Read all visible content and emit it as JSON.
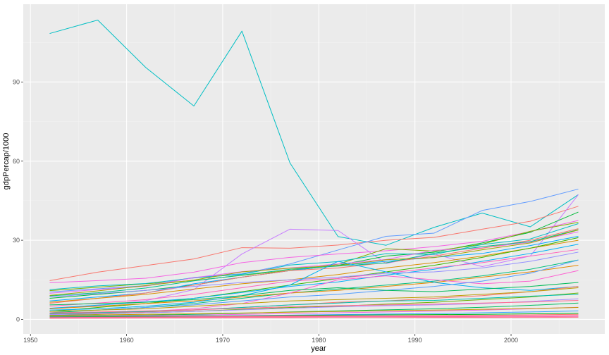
{
  "chart_data": {
    "type": "line",
    "title": "",
    "xlabel": "year",
    "ylabel": "gdpPercap/1000",
    "xlim": [
      1949.25,
      2009.75
    ],
    "ylim": [
      -5.5,
      119.5
    ],
    "x_ticks": [
      1950,
      1960,
      1970,
      1980,
      1990,
      2000
    ],
    "x_tick_labels": [
      "1950",
      "1960",
      "1970",
      "1980",
      "1990",
      "2000"
    ],
    "y_ticks": [
      0,
      30,
      60,
      90
    ],
    "y_tick_labels": [
      "0",
      "30",
      "60",
      "90"
    ],
    "grid": true,
    "legend": "none",
    "panel_background": "#ebebeb",
    "x": [
      1952,
      1957,
      1962,
      1967,
      1972,
      1977,
      1982,
      1987,
      1992,
      1997,
      2002,
      2007
    ],
    "series": [
      {
        "color": "#00bfc4",
        "values": [
          108.4,
          113.5,
          95.5,
          80.9,
          109.3,
          59.3,
          31.4,
          28.1,
          34.9,
          40.3,
          35.1,
          47.3
        ]
      },
      {
        "color": "#f8766d",
        "values": [
          14.7,
          17.9,
          20.4,
          22.9,
          27.2,
          27.0,
          28.2,
          30.0,
          31.1,
          34.2,
          37.2,
          42.9
        ]
      },
      {
        "color": "#619cff",
        "values": [
          10.4,
          11.6,
          12.8,
          15.9,
          17.3,
          21.0,
          26.3,
          31.5,
          32.7,
          41.3,
          44.7,
          49.4
        ]
      },
      {
        "color": "#c77cff",
        "values": [
          4.0,
          5.2,
          7.1,
          11.3,
          24.8,
          34.2,
          33.7,
          21.2,
          24.8,
          20.0,
          24.0,
          47.3
        ]
      },
      {
        "color": "#00ba38",
        "values": [
          8.0,
          9.5,
          11.0,
          13.0,
          16.0,
          18.5,
          20.5,
          24.0,
          25.5,
          29.0,
          33.0,
          40.7
        ]
      },
      {
        "color": "#f564e3",
        "values": [
          13.9,
          14.7,
          15.6,
          17.9,
          21.5,
          23.5,
          24.8,
          26.0,
          27.6,
          29.6,
          33.3,
          37.5
        ]
      },
      {
        "color": "#7cae00",
        "values": [
          10.9,
          12.2,
          13.5,
          14.7,
          16.7,
          18.6,
          20.9,
          26.8,
          25.9,
          28.5,
          33.4,
          36.8
        ]
      },
      {
        "color": "#00bfc4",
        "values": [
          11.3,
          12.7,
          13.6,
          15.7,
          17.1,
          20.6,
          21.9,
          24.9,
          24.6,
          28.4,
          30.5,
          36.3
        ]
      },
      {
        "color": "#e76bf3",
        "values": [
          9.9,
          11.3,
          12.6,
          15.8,
          18.1,
          19.5,
          21.0,
          22.7,
          26.2,
          27.1,
          29.3,
          33.2
        ]
      },
      {
        "color": "#00a9ff",
        "values": [
          7.0,
          8.5,
          10.0,
          13.5,
          16.0,
          18.5,
          20.5,
          22.0,
          23.5,
          25.0,
          28.0,
          31.5
        ]
      },
      {
        "color": "#f8766d",
        "values": [
          6.1,
          8.0,
          10.0,
          13.0,
          16.0,
          18.5,
          19.5,
          21.5,
          24.0,
          27.0,
          30.0,
          34.4
        ]
      },
      {
        "color": "#00c08b",
        "values": [
          8.9,
          10.1,
          11.9,
          14.6,
          16.8,
          19.0,
          20.2,
          21.4,
          25.1,
          27.6,
          29.5,
          34.0
        ]
      },
      {
        "color": "#a3a500",
        "values": [
          9.1,
          10.8,
          12.8,
          14.9,
          18.0,
          19.4,
          20.4,
          22.6,
          23.4,
          26.4,
          29.0,
          33.9
        ]
      },
      {
        "color": "#d89000",
        "values": [
          6.5,
          8.0,
          9.5,
          11.5,
          13.5,
          15.0,
          17.0,
          19.5,
          21.5,
          24.0,
          27.0,
          30.0
        ]
      },
      {
        "color": "#39b600",
        "values": [
          3.0,
          4.5,
          6.0,
          8.0,
          10.5,
          13.0,
          15.5,
          18.0,
          20.5,
          23.5,
          27.0,
          31.0
        ]
      },
      {
        "color": "#00b0f6",
        "values": [
          4.2,
          5.4,
          6.6,
          8.0,
          10.2,
          12.5,
          14.2,
          16.8,
          19.0,
          22.0,
          25.0,
          28.5
        ]
      },
      {
        "color": "#ff62bc",
        "values": [
          5.0,
          6.2,
          7.5,
          9.5,
          12.0,
          14.5,
          15.5,
          17.5,
          19.5,
          21.5,
          24.0,
          26.5
        ]
      },
      {
        "color": "#9590ff",
        "values": [
          8.5,
          9.8,
          11.0,
          12.5,
          14.0,
          15.0,
          16.0,
          17.5,
          18.0,
          19.5,
          22.0,
          25.5
        ]
      },
      {
        "color": "#00bf7d",
        "values": [
          2.5,
          3.5,
          4.5,
          6.0,
          8.0,
          10.0,
          11.5,
          13.0,
          14.5,
          16.5,
          19.0,
          22.5
        ]
      },
      {
        "color": "#e58700",
        "values": [
          4.0,
          5.0,
          6.0,
          7.0,
          8.5,
          10.0,
          11.0,
          12.5,
          14.0,
          16.0,
          18.0,
          20.5
        ]
      },
      {
        "color": "#00b4ef",
        "values": [
          3.5,
          4.0,
          5.0,
          6.5,
          9.0,
          13.0,
          22.0,
          18.0,
          14.0,
          12.0,
          11.0,
          12.5
        ]
      },
      {
        "color": "#fd61d1",
        "values": [
          2.0,
          2.5,
          3.0,
          4.0,
          6.0,
          10.0,
          15.0,
          16.5,
          15.0,
          13.5,
          14.5,
          18.5
        ]
      },
      {
        "color": "#529eff",
        "values": [
          3.0,
          3.5,
          4.5,
          5.5,
          7.0,
          8.5,
          9.5,
          11.0,
          12.5,
          14.5,
          17.5,
          22.5
        ]
      },
      {
        "color": "#00bc59",
        "values": [
          5.5,
          6.0,
          6.5,
          7.5,
          9.0,
          11.0,
          12.0,
          11.0,
          10.5,
          11.5,
          12.5,
          14.0
        ]
      },
      {
        "color": "#f8766d",
        "values": [
          2.0,
          2.4,
          2.8,
          3.5,
          4.5,
          5.5,
          6.5,
          7.0,
          8.0,
          9.0,
          10.5,
          12.5
        ]
      },
      {
        "color": "#bb9d00",
        "values": [
          3.0,
          3.5,
          4.0,
          5.0,
          6.0,
          7.0,
          7.5,
          8.0,
          8.5,
          9.5,
          10.5,
          12.0
        ]
      },
      {
        "color": "#6bb100",
        "values": [
          1.5,
          2.0,
          2.5,
          3.0,
          3.8,
          4.5,
          5.0,
          5.8,
          6.5,
          7.5,
          8.5,
          10.0
        ]
      },
      {
        "color": "#00c0af",
        "values": [
          2.2,
          2.6,
          3.0,
          3.6,
          4.5,
          5.5,
          6.2,
          7.0,
          7.2,
          8.0,
          8.8,
          9.5
        ]
      },
      {
        "color": "#a58aff",
        "values": [
          1.8,
          2.1,
          2.5,
          3.0,
          3.6,
          4.2,
          4.8,
          5.2,
          5.5,
          6.0,
          6.8,
          7.8
        ]
      },
      {
        "color": "#ff6c91",
        "values": [
          2.5,
          2.8,
          3.2,
          3.6,
          4.2,
          4.8,
          5.2,
          5.5,
          5.8,
          6.2,
          6.6,
          7.2
        ]
      },
      {
        "color": "#00bd5f",
        "values": [
          1.2,
          1.4,
          1.6,
          1.9,
          2.3,
          2.8,
          3.2,
          3.6,
          4.0,
          4.6,
          5.3,
          6.2
        ]
      },
      {
        "color": "#ef67eb",
        "values": [
          1.0,
          1.2,
          1.4,
          1.6,
          1.9,
          2.2,
          2.5,
          2.8,
          3.1,
          3.5,
          4.0,
          4.6
        ]
      },
      {
        "color": "#c49a00",
        "values": [
          1.5,
          1.7,
          1.9,
          2.1,
          2.4,
          2.7,
          3.0,
          3.3,
          3.5,
          3.8,
          4.1,
          4.5
        ]
      },
      {
        "color": "#35a2ff",
        "values": [
          0.8,
          0.9,
          1.0,
          1.2,
          1.4,
          1.6,
          1.8,
          2.0,
          2.2,
          2.5,
          2.8,
          3.2
        ]
      },
      {
        "color": "#f8766d",
        "values": [
          0.6,
          0.7,
          0.8,
          0.9,
          1.0,
          1.1,
          1.2,
          1.3,
          1.4,
          1.5,
          1.7,
          1.9
        ]
      },
      {
        "color": "#00b81f",
        "values": [
          0.9,
          1.0,
          1.1,
          1.2,
          1.3,
          1.5,
          1.6,
          1.7,
          1.8,
          1.9,
          2.1,
          2.3
        ]
      },
      {
        "color": "#ff65ae",
        "values": [
          0.5,
          0.6,
          0.6,
          0.7,
          0.8,
          0.9,
          1.0,
          1.0,
          0.9,
          0.9,
          1.0,
          1.1
        ]
      },
      {
        "color": "#ff66a8",
        "values": [
          0.7,
          0.8,
          0.9,
          1.0,
          1.2,
          1.3,
          1.3,
          1.2,
          1.1,
          1.2,
          1.3,
          1.5
        ]
      },
      {
        "color": "#fc717f",
        "values": [
          0.4,
          0.45,
          0.5,
          0.55,
          0.6,
          0.65,
          0.7,
          0.72,
          0.7,
          0.72,
          0.75,
          0.8
        ]
      }
    ]
  }
}
